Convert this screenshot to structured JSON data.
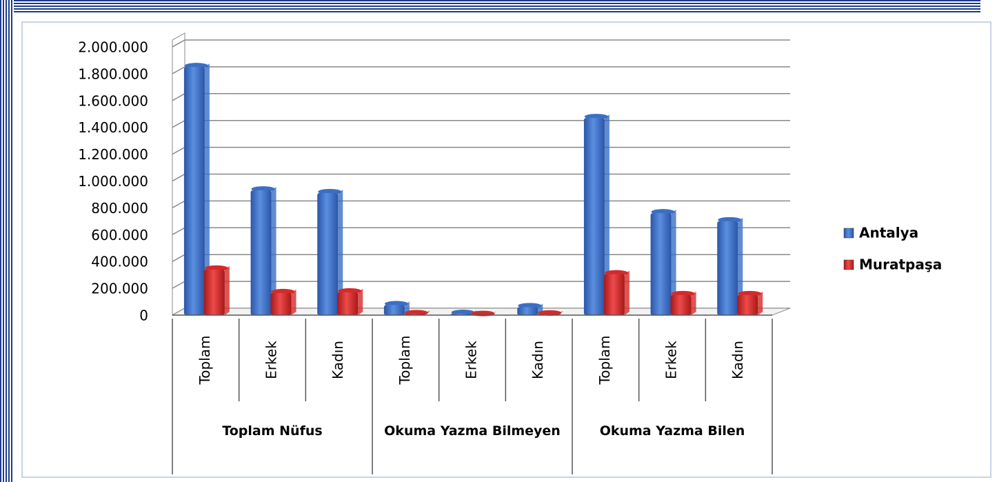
{
  "chart_data": {
    "type": "bar3d",
    "groups": [
      "Toplam Nüfus",
      "Okuma Yazma Bilmeyen",
      "Okuma Yazma Bilen"
    ],
    "categories": [
      "Toplam",
      "Erkek",
      "Kadın",
      "Toplam",
      "Erkek",
      "Kadın",
      "Toplam",
      "Erkek",
      "Kadın"
    ],
    "series": [
      {
        "name": "Antalya",
        "color": "#3a6fc4",
        "values": [
          1850000,
          930000,
          910000,
          75000,
          10000,
          60000,
          1470000,
          760000,
          700000
        ]
      },
      {
        "name": "Muratpaşa",
        "color": "#d42a2a",
        "values": [
          340000,
          165000,
          170000,
          8000,
          2000,
          6000,
          305000,
          150000,
          150000
        ]
      }
    ],
    "ylim": [
      0,
      2000000
    ],
    "yticks": [
      0,
      {
        "value": 200000,
        "label": "200.000"
      },
      {
        "value": 400000,
        "label": "400.000"
      },
      {
        "value": 600000,
        "label": "600.000"
      },
      {
        "value": 800000,
        "label": "800.000"
      },
      {
        "value": 1000000,
        "label": "1.000.000"
      },
      {
        "value": 1200000,
        "label": "1.200.000"
      },
      {
        "value": 1400000,
        "label": "1.400.000"
      },
      {
        "value": 1600000,
        "label": "1.600.000"
      },
      {
        "value": 1800000,
        "label": "1.800.000"
      },
      {
        "value": 2000000,
        "label": "2.000.000"
      }
    ],
    "grid": true,
    "legend": "right"
  }
}
